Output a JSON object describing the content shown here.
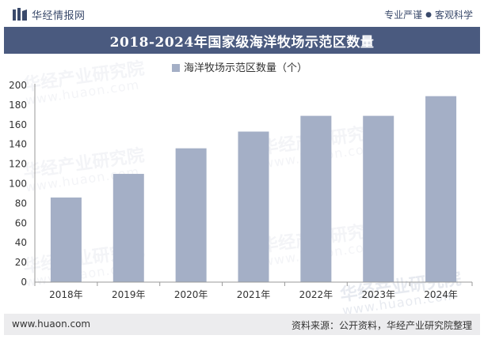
{
  "header": {
    "brand_name": "华经情报网",
    "tagline_left": "专业严谨",
    "tagline_sep": "●",
    "tagline_right": "客观科学"
  },
  "title": "2018-2024年国家级海洋牧场示范区数量",
  "watermark": {
    "text": "华经产业研究院",
    "sub": "www.huaon.com"
  },
  "footer": {
    "url": "www.huaon.com",
    "source": "资料来源：公开资料，华经产业研究院整理"
  },
  "colors": {
    "bar": "#a4afc6",
    "title_bg": "#4a5a7f",
    "axis": "#999999"
  },
  "chart_data": {
    "type": "bar",
    "title": "2018-2024年国家级海洋牧场示范区数量",
    "categories": [
      "2018年",
      "2019年",
      "2020年",
      "2021年",
      "2022年",
      "2023年",
      "2024年"
    ],
    "series": [
      {
        "name": "海洋牧场示范区数量（个）",
        "values": [
          86,
          110,
          136,
          153,
          169,
          169,
          189
        ]
      }
    ],
    "ylim": [
      0,
      200
    ],
    "yticks": [
      0,
      20,
      40,
      60,
      80,
      100,
      120,
      140,
      160,
      180,
      200
    ],
    "legend_position": "top",
    "grid": false,
    "xlabel": "",
    "ylabel": ""
  }
}
